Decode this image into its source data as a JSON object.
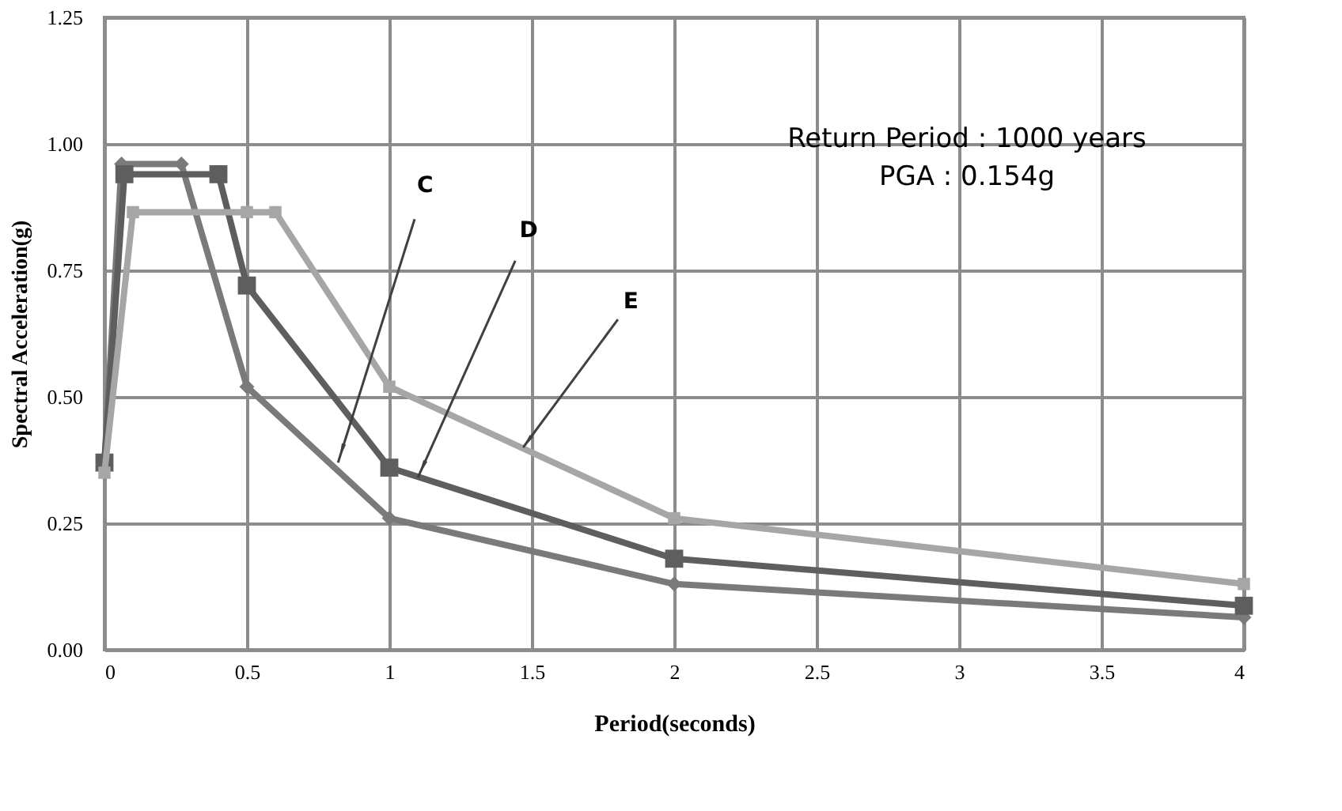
{
  "chart_data": {
    "type": "line",
    "xlabel": "Period(seconds)",
    "ylabel": "Spectral Acceleration(g)",
    "xlim": [
      0,
      4
    ],
    "xticks": [
      0,
      0.5,
      1,
      1.5,
      2,
      2.5,
      3,
      3.5,
      4
    ],
    "ylim": [
      0,
      1.25
    ],
    "yticks": [
      {
        "value": 0,
        "label": "0.00"
      },
      {
        "value": 0.25,
        "label": "0.25"
      },
      {
        "value": 0.5,
        "label": "0.50"
      },
      {
        "value": 0.75,
        "label": "0.75"
      },
      {
        "value": 1,
        "label": "1.00"
      },
      {
        "value": 1.25,
        "label": "1.25"
      }
    ],
    "grid": true,
    "series": [
      {
        "color": "#7a7a7a",
        "marker": "diamond",
        "x": [
          0,
          0.06,
          0.27,
          0.5,
          1,
          2,
          4
        ],
        "values": [
          0.37,
          0.96,
          0.96,
          0.52,
          0.26,
          0.13,
          0.064
        ]
      },
      {
        "color": "#5e5e5e",
        "marker": "square",
        "x": [
          0,
          0.07,
          0.4,
          0.5,
          1,
          2,
          4
        ],
        "values": [
          0.37,
          0.94,
          0.94,
          0.72,
          0.36,
          0.18,
          0.087
        ]
      },
      {
        "color": "#a6a6a6",
        "marker": "square",
        "x": [
          0,
          0.1,
          0.5,
          0.6,
          1,
          2,
          4
        ],
        "values": [
          0.35,
          0.865,
          0.865,
          0.865,
          0.52,
          0.26,
          0.13
        ]
      }
    ],
    "annotations": [
      {
        "text": "C",
        "x": 0.82,
        "y": 0.37
      },
      {
        "text": "D",
        "x": 1.1,
        "y": 0.34
      },
      {
        "text": "E",
        "x": 1.47,
        "y": 0.4
      },
      "Return Period : 1000 years\nPGA : 0.154g"
    ]
  }
}
